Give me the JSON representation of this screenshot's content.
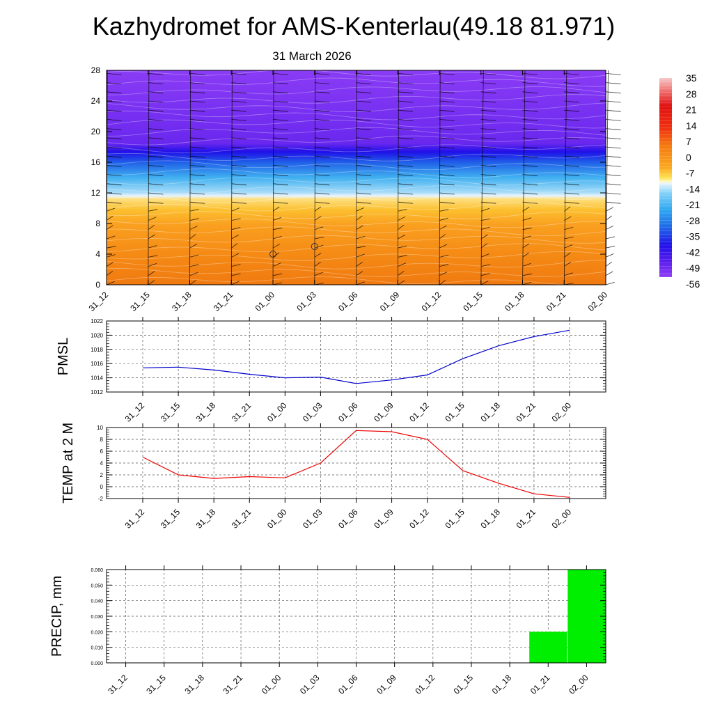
{
  "title": "Kazhydromet for AMS-Kenterlau(49.18 81.971)",
  "subtitle": "31 March 2026",
  "time_labels": [
    "31_12",
    "31_15",
    "31_18",
    "31_21",
    "01_00",
    "01_03",
    "01_06",
    "01_09",
    "01_12",
    "01_15",
    "01_18",
    "01_21",
    "02_00"
  ],
  "chart_data": [
    {
      "type": "heatmap",
      "name": "temperature-wind-cross-section",
      "x": [
        "31_12",
        "31_15",
        "31_18",
        "31_21",
        "01_00",
        "01_03",
        "01_06",
        "01_09",
        "01_12",
        "01_15",
        "01_18",
        "01_21",
        "02_00"
      ],
      "ylim": [
        0,
        28
      ],
      "yticks": [
        0,
        4,
        8,
        12,
        16,
        20,
        24,
        28
      ],
      "levels_temperature": [
        {
          "level": 0,
          "value": 4
        },
        {
          "level": 4,
          "value": 4
        },
        {
          "level": 8,
          "value": -3
        },
        {
          "level": 11.5,
          "value": -13
        },
        {
          "level": 12,
          "value": -17
        },
        {
          "level": 14,
          "value": -24
        },
        {
          "level": 16,
          "value": -36
        },
        {
          "level": 18,
          "value": -55
        },
        {
          "level": 20,
          "value": -56
        },
        {
          "level": 28,
          "value": -56
        }
      ],
      "markers": [
        {
          "x": "01_00",
          "level": 4
        },
        {
          "x": "01_03",
          "level": 5
        }
      ],
      "colorbar": {
        "labels": [
          "35",
          "28",
          "21",
          "14",
          "7",
          "0",
          "-7",
          "-14",
          "-21",
          "-28",
          "-35",
          "-42",
          "-49",
          "-56"
        ]
      }
    },
    {
      "type": "line",
      "name": "pmsl",
      "ylabel": "PMSL",
      "ylim": [
        1012,
        1022
      ],
      "yticks": [
        1012,
        1014,
        1016,
        1018,
        1020,
        1022
      ],
      "x": [
        "31_12",
        "31_15",
        "31_18",
        "31_21",
        "01_00",
        "01_03",
        "01_06",
        "01_09",
        "01_12",
        "01_15",
        "01_18",
        "01_21",
        "02_00"
      ],
      "values": [
        1015.4,
        1015.5,
        1015.1,
        1014.5,
        1014.0,
        1014.1,
        1013.2,
        1013.7,
        1014.4,
        1016.7,
        1018.5,
        1019.8,
        1020.7
      ],
      "color": "#0000cc"
    },
    {
      "type": "line",
      "name": "temp-2m",
      "ylabel": "TEMP at 2 M",
      "ylim": [
        -2,
        10
      ],
      "yticks": [
        -2,
        0,
        2,
        4,
        6,
        8,
        10
      ],
      "x": [
        "31_12",
        "31_15",
        "31_18",
        "31_21",
        "01_00",
        "01_03",
        "01_06",
        "01_09",
        "01_12",
        "01_15",
        "01_18",
        "01_21",
        "02_00"
      ],
      "values": [
        5.0,
        2.0,
        1.4,
        1.7,
        1.5,
        4.0,
        9.5,
        9.3,
        8.0,
        2.7,
        0.6,
        -1.2,
        -1.8
      ],
      "color": "#ee0000"
    },
    {
      "type": "bar",
      "name": "precip",
      "ylabel": "PRECIP, mm",
      "ylim": [
        0,
        0.06
      ],
      "yticks": [
        "0.000",
        "0.010",
        "0.020",
        "0.030",
        "0.040",
        "0.050",
        "0.060"
      ],
      "categories": [
        "31_12",
        "31_15",
        "31_18",
        "31_21",
        "01_00",
        "01_03",
        "01_06",
        "01_09",
        "01_12",
        "01_15",
        "01_18",
        "01_21",
        "02_00"
      ],
      "values": [
        0,
        0,
        0,
        0,
        0,
        0,
        0,
        0,
        0,
        0,
        0,
        0.02,
        0.06
      ],
      "color": "#00ee00"
    }
  ]
}
